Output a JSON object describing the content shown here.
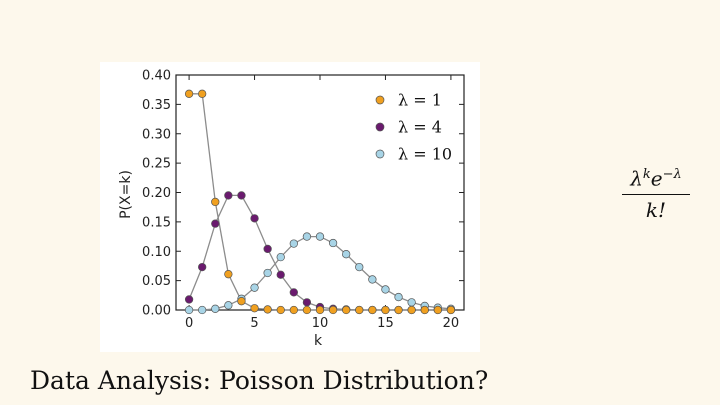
{
  "slide": {
    "title": "Data Analysis: Poisson Distribution?",
    "formula": {
      "numerator_base": "λ",
      "numerator_exp_1": "k",
      "numerator_mid": "e",
      "numerator_exp_2": "−λ",
      "denominator": "k!"
    }
  },
  "chart_data": {
    "type": "line",
    "xlabel": "k",
    "ylabel": "P(X=k)",
    "xlim": [
      -1,
      21
    ],
    "ylim": [
      0,
      0.4
    ],
    "xticks": [
      0,
      5,
      10,
      15,
      20
    ],
    "yticks": [
      0.0,
      0.05,
      0.1,
      0.15,
      0.2,
      0.25,
      0.3,
      0.35,
      0.4
    ],
    "ytick_labels": [
      "0.00",
      "0.05",
      "0.10",
      "0.15",
      "0.20",
      "0.25",
      "0.30",
      "0.35",
      "0.40"
    ],
    "grid": false,
    "legend_position": "top-right",
    "line_color": "#8c8c8c",
    "x": [
      0,
      1,
      2,
      3,
      4,
      5,
      6,
      7,
      8,
      9,
      10,
      11,
      12,
      13,
      14,
      15,
      16,
      17,
      18,
      19,
      20
    ],
    "series": [
      {
        "name": "λ = 1",
        "color": "#f0a020",
        "values": [
          0.368,
          0.368,
          0.184,
          0.061,
          0.015,
          0.003,
          0.001,
          0.0,
          0.0,
          0.0,
          0.0,
          0.0,
          0.0,
          0.0,
          0.0,
          0.0,
          0.0,
          0.0,
          0.0,
          0.0,
          0.0
        ]
      },
      {
        "name": "λ = 4",
        "color": "#6a1a6e",
        "values": [
          0.018,
          0.073,
          0.147,
          0.195,
          0.195,
          0.156,
          0.104,
          0.06,
          0.03,
          0.013,
          0.005,
          0.002,
          0.001,
          0.0,
          0.0,
          0.0,
          0.0,
          0.0,
          0.0,
          0.0,
          0.0
        ]
      },
      {
        "name": "λ = 10",
        "color": "#a8d4e6",
        "values": [
          0.0,
          0.0,
          0.002,
          0.008,
          0.019,
          0.038,
          0.063,
          0.09,
          0.113,
          0.125,
          0.125,
          0.114,
          0.095,
          0.073,
          0.052,
          0.035,
          0.022,
          0.013,
          0.007,
          0.004,
          0.002
        ]
      }
    ]
  }
}
